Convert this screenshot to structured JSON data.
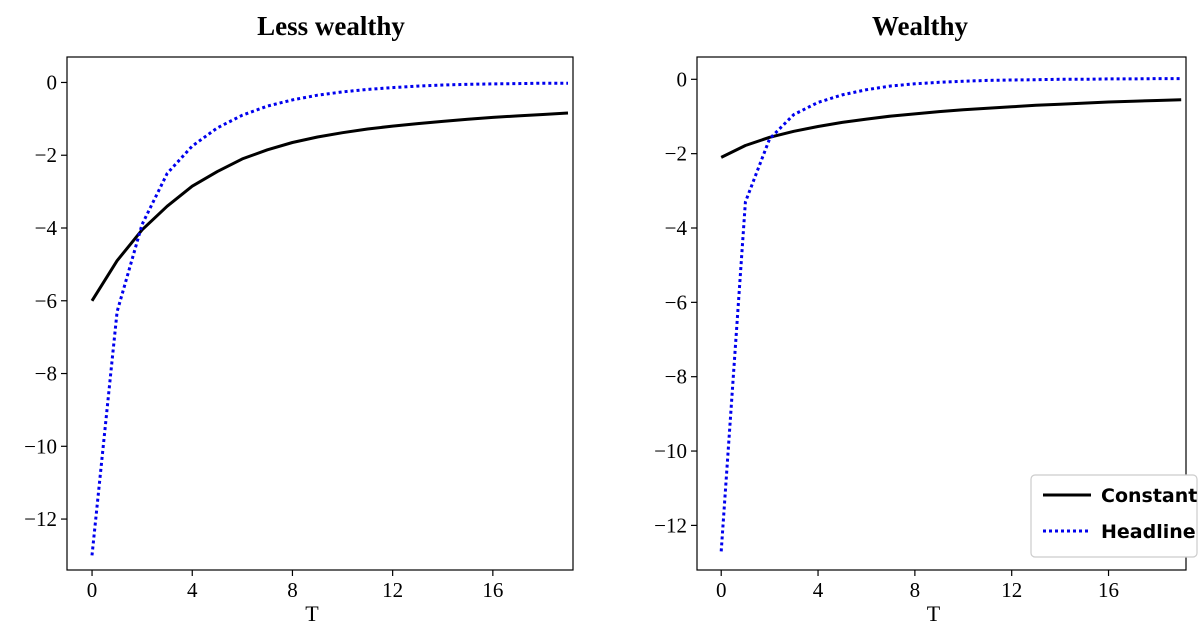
{
  "chart_data": [
    {
      "type": "line",
      "title": "Less wealthy",
      "xlabel": "T",
      "ylabel": "",
      "xlim": [
        -1,
        19.2
      ],
      "ylim": [
        -13.4,
        0.7
      ],
      "xticks": [
        0,
        4,
        8,
        12,
        16
      ],
      "yticks": [
        0,
        -2,
        -4,
        -6,
        -8,
        -10,
        -12
      ],
      "legend": null,
      "x": [
        0,
        1,
        2,
        3,
        4,
        5,
        6,
        7,
        8,
        9,
        10,
        11,
        12,
        13,
        14,
        15,
        16,
        17,
        18,
        19
      ],
      "series": [
        {
          "name": "Constant",
          "color": "#000000",
          "style": "solid",
          "values": [
            -6.0,
            -4.9,
            -4.05,
            -3.4,
            -2.85,
            -2.45,
            -2.1,
            -1.85,
            -1.65,
            -1.5,
            -1.38,
            -1.28,
            -1.2,
            -1.13,
            -1.07,
            -1.01,
            -0.96,
            -0.92,
            -0.88,
            -0.84
          ]
        },
        {
          "name": "Headline",
          "color": "#0000ee",
          "style": "dotted",
          "values": [
            -13.0,
            -6.3,
            -3.9,
            -2.5,
            -1.75,
            -1.25,
            -0.9,
            -0.65,
            -0.48,
            -0.35,
            -0.26,
            -0.19,
            -0.14,
            -0.1,
            -0.07,
            -0.05,
            -0.04,
            -0.03,
            -0.02,
            -0.02
          ]
        }
      ]
    },
    {
      "type": "line",
      "title": "Wealthy",
      "xlabel": "T",
      "ylabel": "",
      "xlim": [
        -1,
        19.2
      ],
      "ylim": [
        -13.2,
        0.6
      ],
      "xticks": [
        0,
        4,
        8,
        12,
        16
      ],
      "yticks": [
        0,
        -2,
        -4,
        -6,
        -8,
        -10,
        -12
      ],
      "legend": "lower-right",
      "x": [
        0,
        1,
        2,
        3,
        4,
        5,
        6,
        7,
        8,
        9,
        10,
        11,
        12,
        13,
        14,
        15,
        16,
        17,
        18,
        19
      ],
      "series": [
        {
          "name": "Constant",
          "color": "#000000",
          "style": "solid",
          "values": [
            -2.1,
            -1.78,
            -1.56,
            -1.4,
            -1.27,
            -1.16,
            -1.07,
            -0.99,
            -0.93,
            -0.87,
            -0.82,
            -0.78,
            -0.74,
            -0.7,
            -0.67,
            -0.64,
            -0.61,
            -0.59,
            -0.57,
            -0.55
          ]
        },
        {
          "name": "Headline",
          "color": "#0000ee",
          "style": "dotted",
          "values": [
            -12.7,
            -3.3,
            -1.6,
            -0.95,
            -0.62,
            -0.42,
            -0.28,
            -0.18,
            -0.12,
            -0.08,
            -0.05,
            -0.03,
            -0.02,
            -0.01,
            0.0,
            0.0,
            0.01,
            0.01,
            0.02,
            0.02
          ]
        }
      ]
    }
  ]
}
